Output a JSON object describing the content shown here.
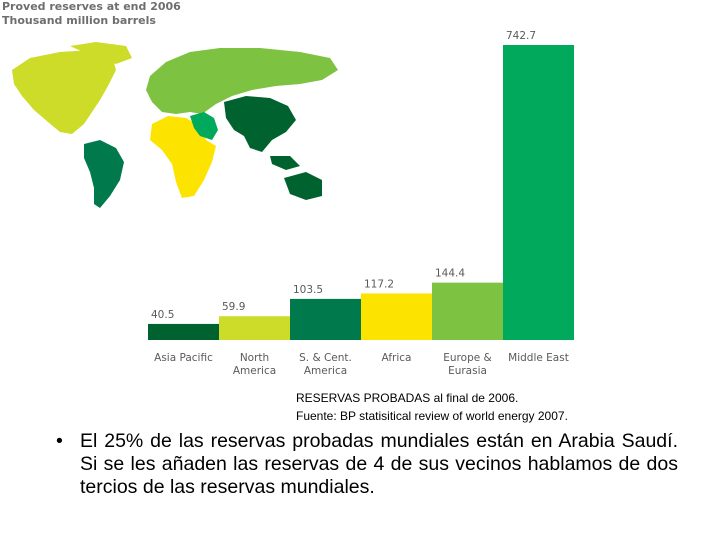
{
  "chart_data": {
    "type": "bar",
    "title": "Proved reserves at end 2006",
    "subtitle": "Thousand million barrels",
    "categories": [
      [
        "Asia Pacific"
      ],
      [
        "North",
        "America"
      ],
      [
        "S. & Cent.",
        "America"
      ],
      [
        "Africa"
      ],
      [
        "Europe &",
        "Eurasia"
      ],
      [
        "Middle East"
      ]
    ],
    "values": [
      40.5,
      59.9,
      103.5,
      117.2,
      144.4,
      742.7
    ],
    "value_labels": [
      "40.5",
      "59.9",
      "103.5",
      "117.2",
      "144.4",
      "742.7"
    ],
    "colors": [
      "#00622f",
      "#cddc28",
      "#007a4c",
      "#fde400",
      "#7dc241",
      "#00a95c"
    ],
    "ylim": [
      0,
      742.7
    ],
    "grid": false,
    "legend": "none",
    "map_colors": {
      "north_america": "#cddc28",
      "south_america": "#007a4c",
      "europe_eurasia": "#7dc241",
      "africa": "#fde400",
      "middle_east": "#00a95c",
      "asia_pacific": "#00622f"
    }
  },
  "caption": {
    "line1": "RESERVAS PROBADAS al final de 2006.",
    "line2": "Fuente: BP statisitical review of world energy 2007."
  },
  "bullet": {
    "symbol": "•",
    "text": "El 25% de las reservas probadas mundiales están en Arabia Saudí. Si se les añaden las reservas de 4 de sus vecinos hablamos de dos tercios de las reservas mundiales."
  }
}
